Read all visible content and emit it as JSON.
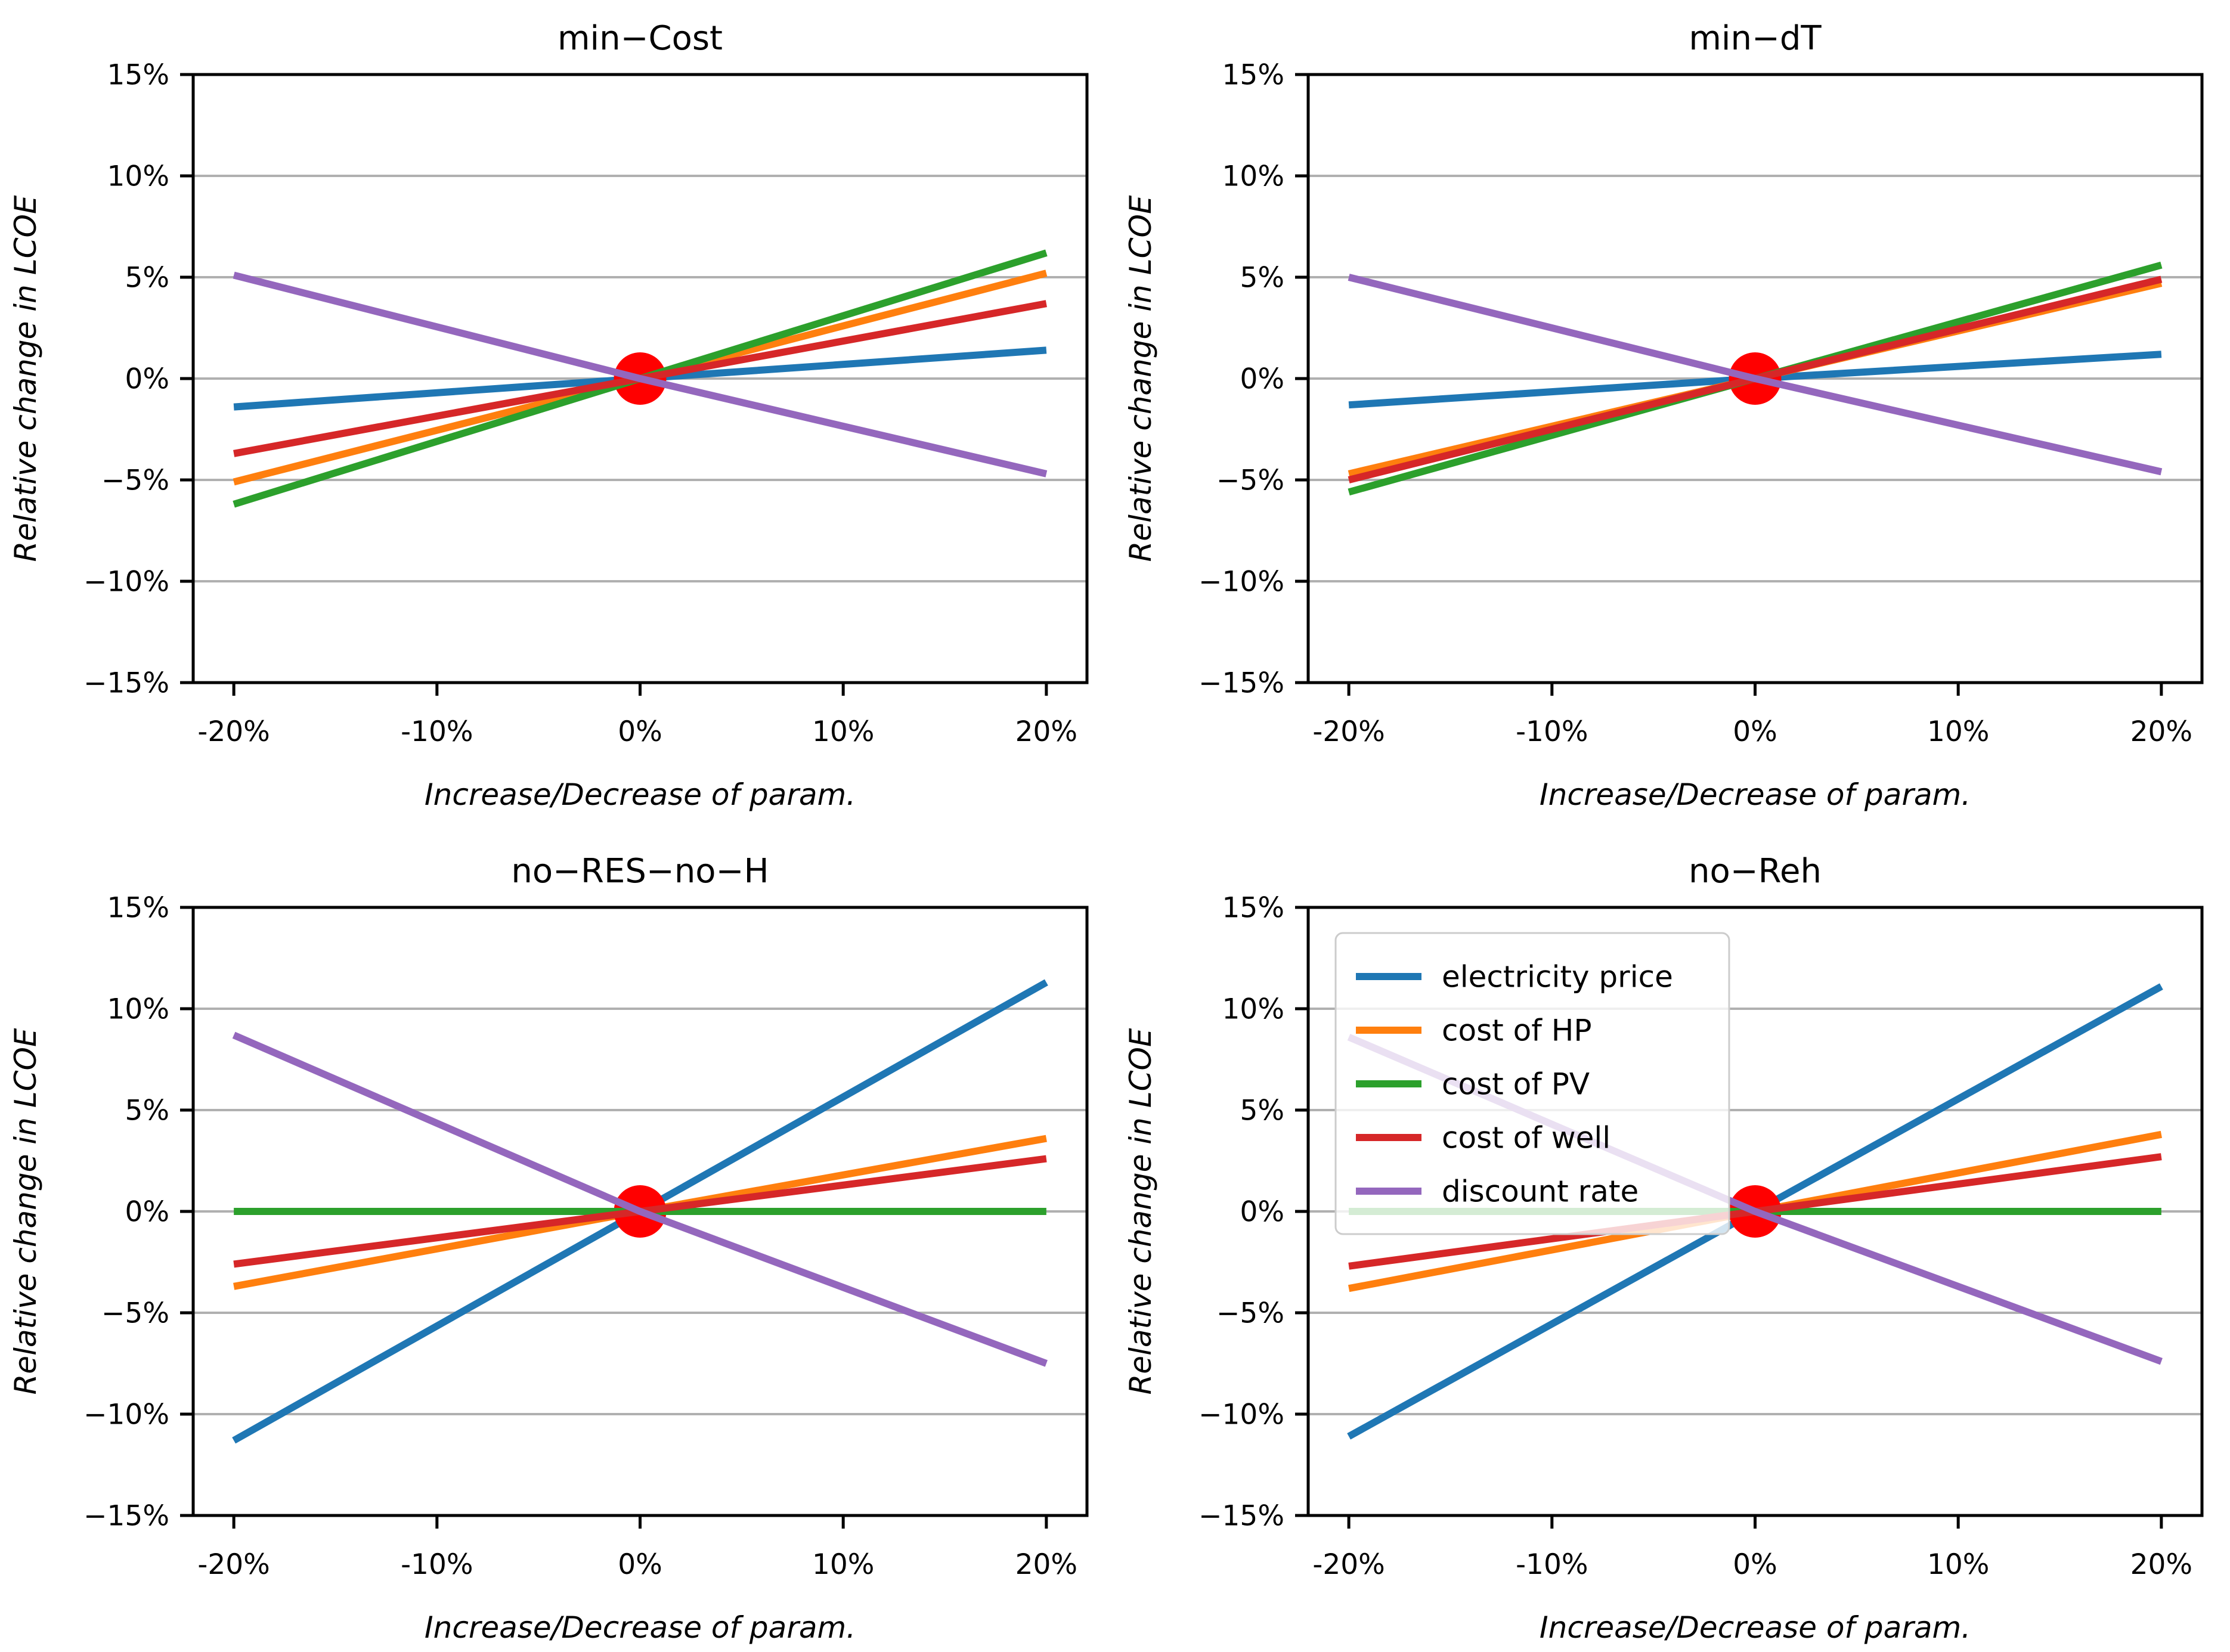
{
  "figure": {
    "background": "#ffffff",
    "grid_color": "#b0b0b0",
    "spine_color": "#000000",
    "text_color": "#000000",
    "origin_marker_color": "#ff0000"
  },
  "legend": {
    "location": "upper-left inside the no−Reh subplot",
    "entries": [
      {
        "label": "electricity price",
        "color": "#1f77b4"
      },
      {
        "label": "cost of HP",
        "color": "#ff7f0e"
      },
      {
        "label": "cost of PV",
        "color": "#2ca02c"
      },
      {
        "label": "cost of well",
        "color": "#d62728"
      },
      {
        "label": "discount rate",
        "color": "#9467bd"
      }
    ]
  },
  "chart_data": [
    {
      "type": "line",
      "title": "min−Cost",
      "xlabel": "Increase/Decrease of param.",
      "ylabel": "Relative change in LCOE",
      "x": [
        -20,
        0,
        20
      ],
      "xlim": [
        -22,
        22
      ],
      "ylim": [
        -15,
        15
      ],
      "xtick_values": [
        -20,
        -10,
        0,
        10,
        20
      ],
      "xtick_labels": [
        "-20%",
        "-10%",
        "0%",
        "10%",
        "20%"
      ],
      "ytick_values": [
        15,
        10,
        5,
        0,
        -5,
        -10,
        -15
      ],
      "ytick_labels": [
        "15%",
        "10%",
        "5%",
        "0%",
        "−5%",
        "−10%",
        "−15%"
      ],
      "grid": "horizontal",
      "series": [
        {
          "name": "electricity price",
          "values": [
            -1.4,
            0,
            1.4
          ]
        },
        {
          "name": "cost of HP",
          "values": [
            -5.1,
            0,
            5.2
          ]
        },
        {
          "name": "cost of PV",
          "values": [
            -6.2,
            0,
            6.2
          ]
        },
        {
          "name": "cost of well",
          "values": [
            -3.7,
            0,
            3.7
          ]
        },
        {
          "name": "discount rate",
          "values": [
            5.1,
            0,
            -4.7
          ]
        }
      ],
      "origin_marker": {
        "x": 0,
        "y": 0
      },
      "show_legend": false
    },
    {
      "type": "line",
      "title": "min−dT",
      "xlabel": "Increase/Decrease of param.",
      "ylabel": "Relative change in LCOE",
      "x": [
        -20,
        0,
        20
      ],
      "xlim": [
        -22,
        22
      ],
      "ylim": [
        -15,
        15
      ],
      "xtick_values": [
        -20,
        -10,
        0,
        10,
        20
      ],
      "xtick_labels": [
        "-20%",
        "-10%",
        "0%",
        "10%",
        "20%"
      ],
      "ytick_values": [
        15,
        10,
        5,
        0,
        -5,
        -10,
        -15
      ],
      "ytick_labels": [
        "15%",
        "10%",
        "5%",
        "0%",
        "−5%",
        "−10%",
        "−15%"
      ],
      "grid": "horizontal",
      "series": [
        {
          "name": "electricity price",
          "values": [
            -1.3,
            0,
            1.2
          ]
        },
        {
          "name": "cost of HP",
          "values": [
            -4.7,
            0,
            4.7
          ]
        },
        {
          "name": "cost of PV",
          "values": [
            -5.6,
            0,
            5.6
          ]
        },
        {
          "name": "cost of well",
          "values": [
            -5.0,
            0,
            4.9
          ]
        },
        {
          "name": "discount rate",
          "values": [
            5.0,
            0,
            -4.6
          ]
        }
      ],
      "origin_marker": {
        "x": 0,
        "y": 0
      },
      "show_legend": false
    },
    {
      "type": "line",
      "title": "no−RES−no−H",
      "xlabel": "Increase/Decrease of param.",
      "ylabel": "Relative change in LCOE",
      "x": [
        -20,
        0,
        20
      ],
      "xlim": [
        -22,
        22
      ],
      "ylim": [
        -15,
        15
      ],
      "xtick_values": [
        -20,
        -10,
        0,
        10,
        20
      ],
      "xtick_labels": [
        "-20%",
        "-10%",
        "0%",
        "10%",
        "20%"
      ],
      "ytick_values": [
        15,
        10,
        5,
        0,
        -5,
        -10,
        -15
      ],
      "ytick_labels": [
        "15%",
        "10%",
        "5%",
        "0%",
        "−5%",
        "−10%",
        "−15%"
      ],
      "grid": "horizontal",
      "series": [
        {
          "name": "electricity price",
          "values": [
            -11.3,
            0,
            11.3
          ]
        },
        {
          "name": "cost of HP",
          "values": [
            -3.7,
            0,
            3.6
          ]
        },
        {
          "name": "cost of PV",
          "values": [
            0,
            0,
            0
          ]
        },
        {
          "name": "cost of well",
          "values": [
            -2.6,
            0,
            2.6
          ]
        },
        {
          "name": "discount rate",
          "values": [
            8.7,
            0,
            -7.5
          ]
        }
      ],
      "origin_marker": {
        "x": 0,
        "y": 0
      },
      "show_legend": false
    },
    {
      "type": "line",
      "title": "no−Reh",
      "xlabel": "Increase/Decrease of param.",
      "ylabel": "Relative change in LCOE",
      "x": [
        -20,
        0,
        20
      ],
      "xlim": [
        -22,
        22
      ],
      "ylim": [
        -15,
        15
      ],
      "xtick_values": [
        -20,
        -10,
        0,
        10,
        20
      ],
      "xtick_labels": [
        "-20%",
        "-10%",
        "0%",
        "10%",
        "20%"
      ],
      "ytick_values": [
        15,
        10,
        5,
        0,
        -5,
        -10,
        -15
      ],
      "ytick_labels": [
        "15%",
        "10%",
        "5%",
        "0%",
        "−5%",
        "−10%",
        "−15%"
      ],
      "grid": "horizontal",
      "series": [
        {
          "name": "electricity price",
          "values": [
            -11.1,
            0,
            11.1
          ]
        },
        {
          "name": "cost of HP",
          "values": [
            -3.8,
            0,
            3.8
          ]
        },
        {
          "name": "cost of PV",
          "values": [
            0,
            0,
            0
          ]
        },
        {
          "name": "cost of well",
          "values": [
            -2.7,
            0,
            2.7
          ]
        },
        {
          "name": "discount rate",
          "values": [
            8.6,
            0,
            -7.4
          ]
        }
      ],
      "origin_marker": {
        "x": 0,
        "y": 0
      },
      "show_legend": true
    }
  ]
}
